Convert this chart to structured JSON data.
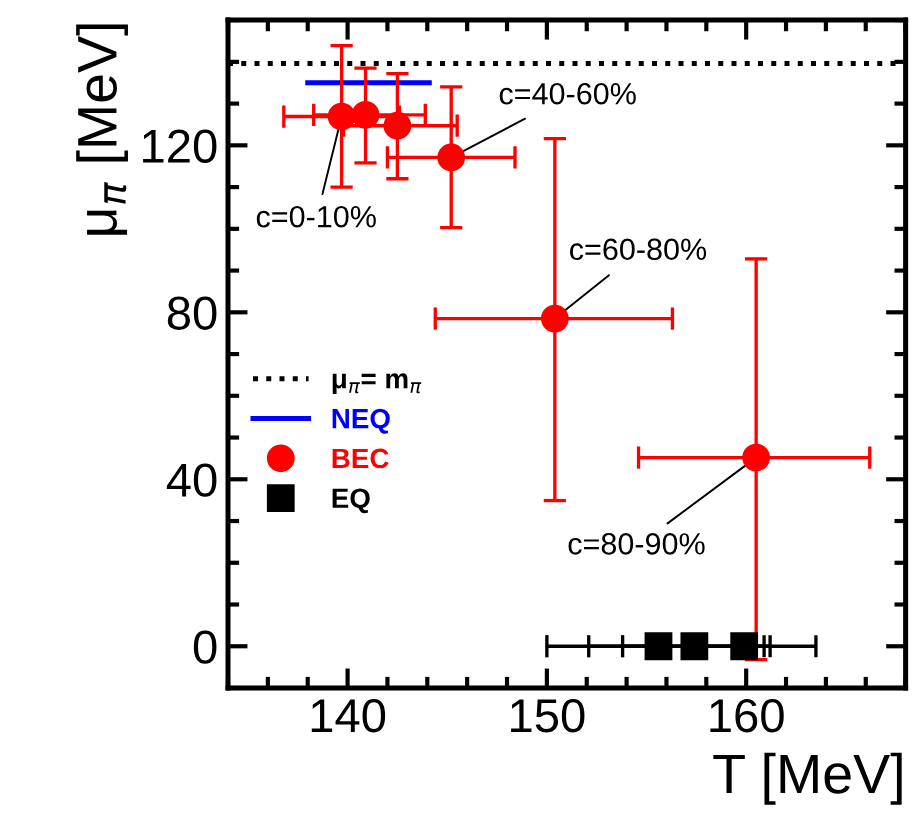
{
  "chart_data": {
    "type": "scatter",
    "xlabel": "T [MeV]",
    "ylabel": "μ$_{π}$ [MeV]",
    "xlim": [
      134,
      168
    ],
    "ylim": [
      -10,
      150
    ],
    "xticks": [
      140,
      150,
      160
    ],
    "yticks": [
      0,
      40,
      80,
      120
    ],
    "ref_lines": [
      {
        "axis": "y",
        "value": 139.6,
        "label": "μ$_{π}$= m$_{π}$",
        "color": "#000000",
        "line_style": "dotted"
      }
    ],
    "series": [
      {
        "name": "NEQ",
        "type": "line",
        "color": "#0000ff",
        "x": [
          138.0,
          144.1
        ],
        "values": [
          135,
          135
        ],
        "marker": "none"
      },
      {
        "name": "BEC",
        "color": "#ff0000",
        "marker": "circle",
        "x": [
          139.7,
          140.9,
          142.5,
          145.2,
          150.4,
          160.5
        ],
        "values": [
          126.9,
          127.3,
          124.7,
          117.1,
          78.5,
          45.2
        ],
        "errors": [
          [
            110,
            143.9
          ],
          [
            115.8,
            138.5
          ],
          [
            112,
            137.2
          ],
          [
            100.3,
            134.0
          ],
          [
            34.9,
            121.6
          ],
          [
            -3.2,
            92.8
          ]
        ],
        "xerrors": [
          [
            136.8,
            142.6
          ],
          [
            138.3,
            143.9
          ],
          [
            139.8,
            145.5
          ],
          [
            142.0,
            148.4
          ],
          [
            144.4,
            156.3
          ],
          [
            154.6,
            166.2
          ]
        ]
      },
      {
        "name": "EQ",
        "color": "#000000",
        "marker": "square",
        "x": [
          155.6,
          157.4,
          159.9
        ],
        "values": [
          0,
          0,
          0
        ],
        "xerrors": [
          [
            150.0,
            160.9
          ],
          [
            152.1,
            163.5
          ],
          [
            153.8,
            161.2
          ]
        ]
      }
    ],
    "annotations": [
      {
        "text": "c=0-10%",
        "x": 139.7,
        "y": 126.9
      },
      {
        "text": "c=40-60%",
        "x": 145.2,
        "y": 117.1
      },
      {
        "text": "c=60-80%",
        "x": 150.4,
        "y": 78.5
      },
      {
        "text": "c=80-90%",
        "x": 160.5,
        "y": 45.2
      }
    ],
    "legend": "left",
    "grid": false
  }
}
